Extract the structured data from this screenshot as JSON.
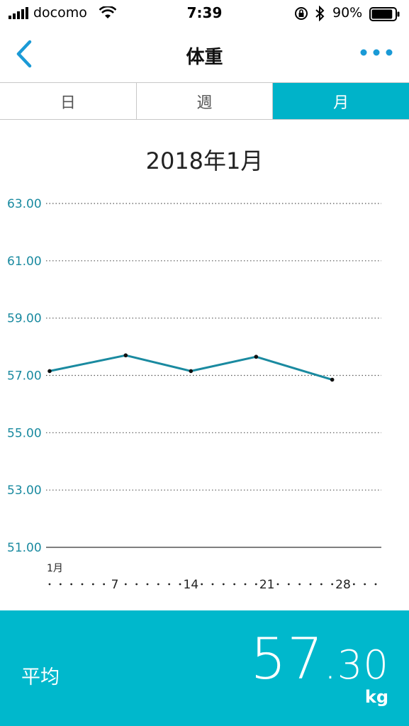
{
  "status_bar": {
    "carrier": "docomo",
    "time": "7:39",
    "battery_percent": "90%",
    "battery_level": 0.9,
    "icons": [
      "signal-icon",
      "wifi-icon",
      "rotation-lock-icon",
      "bluetooth-icon",
      "battery-icon"
    ]
  },
  "nav": {
    "title": "体重",
    "back_icon": "chevron-left-icon",
    "more_icon": "more-dots-icon"
  },
  "tabs": [
    {
      "label": "日",
      "active": false
    },
    {
      "label": "週",
      "active": false
    },
    {
      "label": "月",
      "active": true
    }
  ],
  "chart": {
    "period_label": "2018年1月"
  },
  "chart_data": {
    "type": "line",
    "title": "2018年1月",
    "xlabel": "",
    "ylabel": "",
    "ylim": [
      51,
      63
    ],
    "yticks": [
      "63.00",
      "61.00",
      "59.00",
      "57.00",
      "55.00",
      "53.00",
      "51.00"
    ],
    "x_month_label": "1月",
    "xtick_labels": [
      {
        "day": 7,
        "label": "7"
      },
      {
        "day": 14,
        "label": "14"
      },
      {
        "day": 21,
        "label": "21"
      },
      {
        "day": 28,
        "label": "28"
      }
    ],
    "x_days": 31,
    "series": [
      {
        "points": [
          {
            "x": 1,
            "y": 57.15
          },
          {
            "x": 8,
            "y": 57.7
          },
          {
            "x": 14,
            "y": 57.15
          },
          {
            "x": 20,
            "y": 57.65
          },
          {
            "x": 27,
            "y": 56.85
          }
        ]
      }
    ],
    "grid": true,
    "line_color": "#1a8aa0"
  },
  "average": {
    "label": "平均",
    "value_int": "57",
    "value_dec": ".30",
    "unit": "kg"
  },
  "colors": {
    "accent": "#00b3c9",
    "back_arrow": "#1a9ad6",
    "axis_text": "#1a8aa0"
  }
}
